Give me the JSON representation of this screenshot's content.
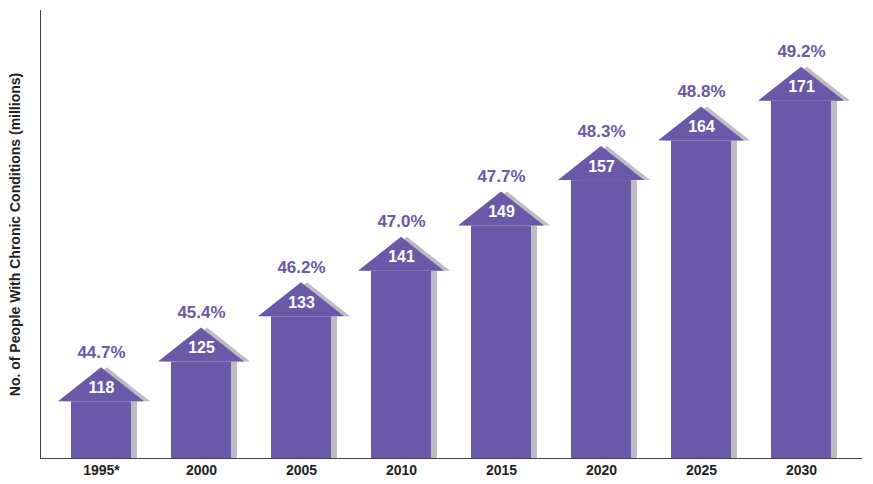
{
  "chart_data": {
    "type": "bar",
    "y_label": "No. of People With Chronic Conditions (millions)",
    "categories": [
      "1995*",
      "2000",
      "2005",
      "2010",
      "2015",
      "2020",
      "2025",
      "2030"
    ],
    "values": [
      118,
      125,
      133,
      141,
      149,
      157,
      164,
      171
    ],
    "percentages": {
      "values": [
        44.7,
        45.4,
        46.2,
        47.0,
        47.7,
        48.3,
        48.8,
        49.2
      ],
      "value_labels": [
        "44.7%",
        "45.4%",
        "46.2%",
        "47.0%",
        "47.7%",
        "48.3%",
        "48.8%",
        "49.2%"
      ]
    },
    "color": "#6a58a8",
    "ylim": [
      102,
      181
    ],
    "yticks": [],
    "tick_labels": "x",
    "data_labels": true,
    "grid": false
  }
}
